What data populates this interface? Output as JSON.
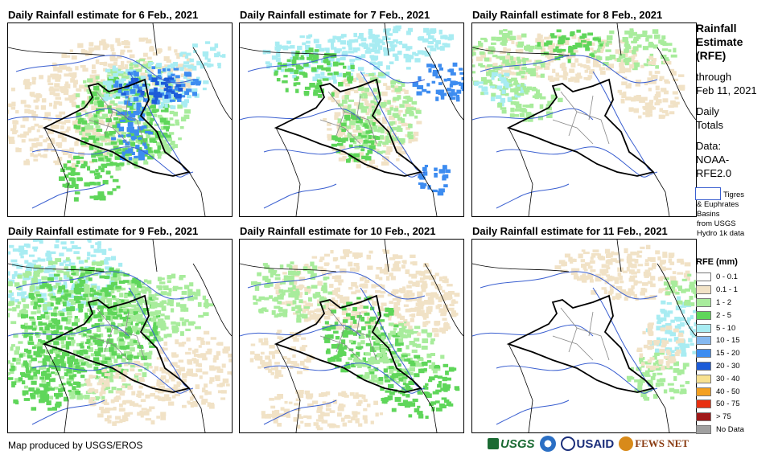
{
  "panels": [
    {
      "title": "Daily Rainfall estimate for 6 Feb., 2021",
      "pattern": "heavy-north"
    },
    {
      "title": "Daily Rainfall estimate for 7 Feb., 2021",
      "pattern": "moderate-northeast"
    },
    {
      "title": "Daily Rainfall estimate for 8 Feb., 2021",
      "pattern": "light-north"
    },
    {
      "title": "Daily Rainfall estimate for 9 Feb., 2021",
      "pattern": "widespread-west"
    },
    {
      "title": "Daily Rainfall estimate for 10 Feb., 2021",
      "pattern": "scattered-central"
    },
    {
      "title": "Daily Rainfall estimate for 11 Feb., 2021",
      "pattern": "light-east"
    }
  ],
  "sidebar": {
    "title_lines": [
      "Rainfall",
      "Estimate",
      "(RFE)"
    ],
    "subtitle_lines": [
      "through",
      "Feb 11, 2021"
    ],
    "daily_lines": [
      "Daily",
      "Totals"
    ],
    "data_lines": [
      "Data:",
      "NOAA-",
      "RFE2.0"
    ],
    "basin_lines": [
      "Tigres",
      "& Euphrates",
      "Basins",
      "from USGS",
      "Hydro 1k data"
    ]
  },
  "legend": {
    "title": "RFE (mm)",
    "items": [
      {
        "label": "0 - 0.1",
        "color": "#ffffff"
      },
      {
        "label": "0.1 - 1",
        "color": "#f1e2c6"
      },
      {
        "label": "1 - 2",
        "color": "#a8ec9c"
      },
      {
        "label": "2 - 5",
        "color": "#5fd65a"
      },
      {
        "label": "5 - 10",
        "color": "#a8ecf2"
      },
      {
        "label": "10 - 15",
        "color": "#84b8f0"
      },
      {
        "label": "15 - 20",
        "color": "#3d8cf0"
      },
      {
        "label": "20 - 30",
        "color": "#1c5bd8"
      },
      {
        "label": "30 - 40",
        "color": "#f8e190"
      },
      {
        "label": "40 - 50",
        "color": "#f4a020"
      },
      {
        "label": "50 - 75",
        "color": "#e83010"
      },
      {
        "label": "> 75",
        "color": "#a01818"
      },
      {
        "label": "No Data",
        "color": "#a0a0a0"
      }
    ]
  },
  "footer": {
    "credit": "Map produced by USGS/EROS"
  },
  "logos": [
    "USGS",
    "NOAA",
    "USAID",
    "FEWS NET"
  ]
}
